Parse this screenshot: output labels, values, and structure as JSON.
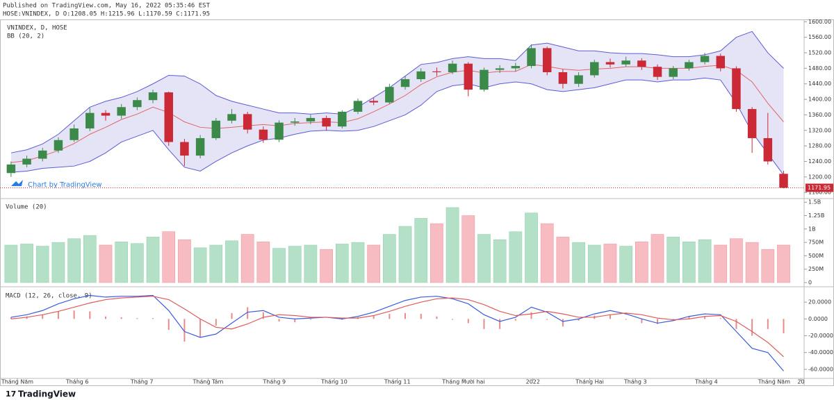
{
  "header": {
    "line1": "Published on TradingView.com, May 16, 2022 05:35:46 EST",
    "line2": "HOSE:VNINDEX, D O:1208.05 H:1215.96 L:1170.59 C:1171.95"
  },
  "footer": {
    "brand": "TradingView",
    "watermark": "Chart by TradingView"
  },
  "chart_data": [
    {
      "type": "candlestick",
      "title": "VNINDEX, D, HOSE",
      "subtitle": "BB (20, 2)",
      "open": [
        1210,
        1232,
        1247,
        1268,
        1295,
        1325,
        1365,
        1358,
        1380,
        1398,
        1418,
        1290,
        1255,
        1300,
        1345,
        1362,
        1322,
        1296,
        1340,
        1343,
        1352,
        1330,
        1368,
        1396,
        1392,
        1432,
        1452,
        1472,
        1470,
        1492,
        1425,
        1476,
        1480,
        1486,
        1532,
        1470,
        1440,
        1462,
        1496,
        1490,
        1500,
        1484,
        1458,
        1480,
        1496,
        1512,
        1480,
        1375,
        1300,
        1208.05
      ],
      "high": [
        1240,
        1255,
        1275,
        1302,
        1335,
        1378,
        1372,
        1388,
        1405,
        1425,
        1420,
        1298,
        1308,
        1352,
        1375,
        1368,
        1330,
        1346,
        1352,
        1360,
        1358,
        1372,
        1402,
        1404,
        1440,
        1460,
        1480,
        1482,
        1500,
        1496,
        1482,
        1488,
        1494,
        1542,
        1536,
        1478,
        1470,
        1502,
        1505,
        1510,
        1506,
        1490,
        1486,
        1502,
        1520,
        1518,
        1485,
        1380,
        1365,
        1215.96
      ],
      "low": [
        1200,
        1225,
        1240,
        1262,
        1290,
        1318,
        1345,
        1350,
        1372,
        1390,
        1280,
        1228,
        1248,
        1295,
        1338,
        1312,
        1288,
        1290,
        1332,
        1336,
        1320,
        1325,
        1362,
        1385,
        1388,
        1425,
        1445,
        1460,
        1465,
        1408,
        1420,
        1468,
        1472,
        1480,
        1462,
        1428,
        1432,
        1456,
        1482,
        1484,
        1476,
        1450,
        1452,
        1474,
        1490,
        1472,
        1368,
        1262,
        1232,
        1170.59
      ],
      "close": [
        1232,
        1247,
        1268,
        1295,
        1325,
        1365,
        1358,
        1380,
        1398,
        1418,
        1290,
        1255,
        1300,
        1345,
        1362,
        1322,
        1296,
        1340,
        1343,
        1352,
        1330,
        1368,
        1396,
        1392,
        1432,
        1452,
        1472,
        1470,
        1492,
        1425,
        1476,
        1480,
        1486,
        1532,
        1470,
        1440,
        1462,
        1496,
        1490,
        1500,
        1484,
        1458,
        1480,
        1496,
        1512,
        1480,
        1375,
        1300,
        1240,
        1171.95
      ],
      "bb_upper": [
        1262,
        1270,
        1285,
        1310,
        1345,
        1380,
        1395,
        1405,
        1420,
        1440,
        1462,
        1460,
        1440,
        1410,
        1395,
        1385,
        1375,
        1365,
        1365,
        1362,
        1365,
        1362,
        1380,
        1405,
        1430,
        1460,
        1490,
        1495,
        1505,
        1510,
        1505,
        1505,
        1500,
        1540,
        1545,
        1535,
        1525,
        1525,
        1520,
        1518,
        1518,
        1515,
        1510,
        1510,
        1515,
        1525,
        1560,
        1575,
        1520,
        1480
      ],
      "bb_middle": [
        1237,
        1242,
        1254,
        1268,
        1286,
        1310,
        1328,
        1348,
        1362,
        1380,
        1366,
        1342,
        1328,
        1325,
        1328,
        1332,
        1335,
        1332,
        1338,
        1340,
        1342,
        1340,
        1350,
        1368,
        1388,
        1410,
        1438,
        1458,
        1470,
        1475,
        1468,
        1472,
        1472,
        1490,
        1485,
        1478,
        1475,
        1478,
        1480,
        1484,
        1484,
        1480,
        1480,
        1480,
        1485,
        1488,
        1475,
        1445,
        1390,
        1342
      ],
      "bb_lower": [
        1212,
        1215,
        1222,
        1225,
        1228,
        1240,
        1262,
        1290,
        1305,
        1320,
        1270,
        1225,
        1215,
        1240,
        1262,
        1280,
        1295,
        1300,
        1310,
        1318,
        1320,
        1318,
        1320,
        1330,
        1345,
        1360,
        1385,
        1420,
        1435,
        1440,
        1430,
        1440,
        1445,
        1440,
        1425,
        1420,
        1425,
        1430,
        1440,
        1450,
        1450,
        1445,
        1450,
        1450,
        1455,
        1450,
        1390,
        1315,
        1260,
        1205
      ],
      "up_color": "#3c8a4a",
      "down_color": "#cc2936",
      "band_line_color": "#5b5bd6",
      "band_fill": "#e4e4f6",
      "mid_color": "#e06666",
      "last_value_label": "1171.95",
      "xlim": [
        -0.7,
        50.3
      ],
      "ylim": [
        1146,
        1606
      ],
      "yticks": [
        {
          "value": 1160,
          "label": "1160.00"
        },
        {
          "value": 1200,
          "label": "1200.00"
        },
        {
          "value": 1240,
          "label": "1240.00"
        },
        {
          "value": 1280,
          "label": "1280.00"
        },
        {
          "value": 1320,
          "label": "1320.00"
        },
        {
          "value": 1360,
          "label": "1360.00"
        },
        {
          "value": 1400,
          "label": "1400.00"
        },
        {
          "value": 1440,
          "label": "1440.00"
        },
        {
          "value": 1480,
          "label": "1480.00"
        },
        {
          "value": 1520,
          "label": "1520.00"
        },
        {
          "value": 1560,
          "label": "1560.00"
        },
        {
          "value": 1600,
          "label": "1600.00"
        }
      ]
    },
    {
      "type": "bar",
      "title": "Volume (20)",
      "values": [
        700000000,
        720000000,
        680000000,
        750000000,
        820000000,
        880000000,
        700000000,
        760000000,
        730000000,
        850000000,
        950000000,
        800000000,
        650000000,
        700000000,
        780000000,
        900000000,
        760000000,
        640000000,
        680000000,
        700000000,
        620000000,
        720000000,
        750000000,
        700000000,
        900000000,
        1050000000,
        1200000000,
        1100000000,
        1400000000,
        1250000000,
        900000000,
        800000000,
        950000000,
        1300000000,
        1100000000,
        850000000,
        750000000,
        700000000,
        720000000,
        680000000,
        760000000,
        900000000,
        850000000,
        760000000,
        800000000,
        700000000,
        820000000,
        750000000,
        620000000,
        700000000
      ],
      "up_color": "#b4e0c8",
      "down_color": "#f7bcc2",
      "xlim": [
        -0.7,
        50.3
      ],
      "ylim": [
        -65000000,
        1555000000
      ],
      "yticks": [
        0,
        {
          "value": 250000000,
          "label": "250M"
        },
        {
          "value": 500000000,
          "label": "500M"
        },
        {
          "value": 750000000,
          "label": "750M"
        },
        {
          "value": 1000000000,
          "label": "1B"
        },
        {
          "value": 1250000000,
          "label": "1.25B"
        },
        {
          "value": 1500000000,
          "label": "1.5B"
        }
      ]
    },
    {
      "type": "line",
      "title": "MACD (12, 26, close, 9)",
      "series": [
        {
          "color": "#3b5bdb",
          "values": [
            2,
            5,
            10,
            18,
            24,
            28,
            26,
            27,
            27,
            28,
            10,
            -15,
            -22,
            -18,
            -5,
            8,
            10,
            2,
            0,
            1,
            2,
            0,
            3,
            8,
            15,
            22,
            26,
            27,
            24,
            18,
            5,
            -3,
            2,
            14,
            8,
            -3,
            0,
            6,
            10,
            6,
            0,
            -5,
            -2,
            3,
            6,
            5,
            -15,
            -35,
            -40,
            -62
          ]
        },
        {
          "color": "#e05a5a",
          "values": [
            0,
            2,
            5,
            9,
            14,
            19,
            23,
            25,
            26,
            27,
            23,
            12,
            0,
            -10,
            -12,
            -6,
            2,
            5,
            4,
            2,
            2,
            1,
            1,
            4,
            9,
            15,
            20,
            24,
            25,
            23,
            17,
            9,
            4,
            6,
            9,
            6,
            2,
            2,
            5,
            7,
            5,
            1,
            -1,
            0,
            3,
            4,
            -3,
            -15,
            -28,
            -45
          ]
        }
      ],
      "histogram": [
        2,
        3,
        5,
        9,
        10,
        9,
        3,
        2,
        1,
        1,
        -13,
        -27,
        -22,
        -8,
        7,
        14,
        8,
        -3,
        -4,
        -1,
        0,
        -1,
        2,
        4,
        6,
        7,
        6,
        3,
        -1,
        -5,
        -12,
        -12,
        -2,
        8,
        -1,
        -9,
        -2,
        4,
        5,
        -1,
        -5,
        -6,
        -1,
        3,
        3,
        1,
        -12,
        -20,
        -12,
        -17
      ],
      "hist_color": "#e88a8a",
      "xlim": [
        -0.7,
        50.3
      ],
      "ylim": [
        -70.8,
        37.5
      ],
      "yticks": [
        {
          "value": 20,
          "label": "20.0000"
        },
        {
          "value": 0,
          "label": "0.0000"
        },
        {
          "value": -20,
          "label": "-20.0000"
        },
        {
          "value": -40,
          "label": "-40.0000"
        },
        {
          "value": -60,
          "label": "-60.0000"
        }
      ],
      "xticks": [
        {
          "value": 0.4,
          "label": "Tháng Năm"
        },
        {
          "value": 4.2,
          "label": "Tháng 6"
        },
        {
          "value": 8.3,
          "label": "Tháng 7"
        },
        {
          "value": 12.5,
          "label": "Tháng Tám"
        },
        {
          "value": 16.7,
          "label": "Tháng 9"
        },
        {
          "value": 20.5,
          "label": "Tháng 10"
        },
        {
          "value": 24.5,
          "label": "Tháng 11"
        },
        {
          "value": 28.7,
          "label": "Tháng Mười hai"
        },
        {
          "value": 33.1,
          "label": "2022"
        },
        {
          "value": 36.7,
          "label": "Tháng Hai"
        },
        {
          "value": 39.6,
          "label": "Tháng 3"
        },
        {
          "value": 44.1,
          "label": "Tháng 4"
        },
        {
          "value": 48.4,
          "label": "Tháng Năm"
        },
        {
          "value": 50.1,
          "label": "20"
        }
      ]
    }
  ]
}
